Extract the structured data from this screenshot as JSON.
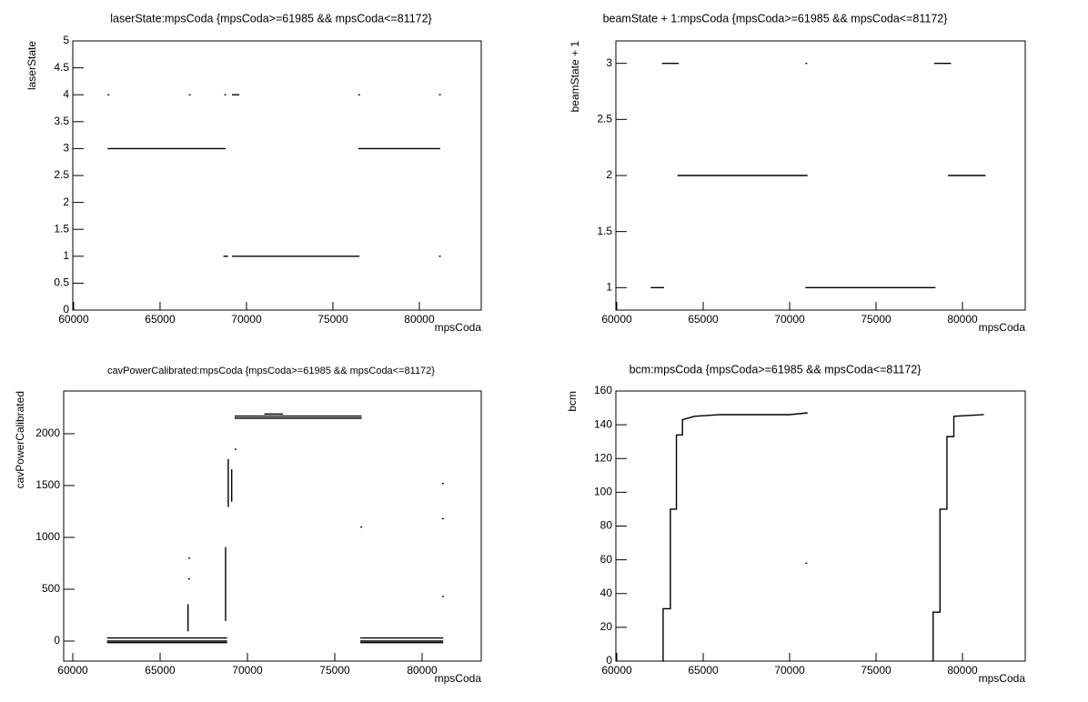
{
  "chart_data": [
    {
      "type": "line",
      "title": "laserState:mpsCoda {mpsCoda>=61985 && mpsCoda<=81172}",
      "xlabel": "mpsCoda",
      "ylabel": "laserState",
      "color": "#000000",
      "xlim": [
        59950,
        83580
      ],
      "xticks": [
        60000,
        65000,
        70000,
        75000,
        80000
      ],
      "ylim": [
        0,
        5
      ],
      "yticks": [
        0,
        0.5,
        1,
        1.5,
        2,
        2.5,
        3,
        3.5,
        4,
        4.5,
        5
      ],
      "x": [
        62000,
        68750,
        null,
        76500,
        81172,
        null,
        69200,
        76500,
        null,
        68700,
        68900,
        null,
        81172,
        null,
        62000,
        null,
        66700,
        null,
        68750,
        null,
        69200,
        69550,
        null,
        76500,
        null,
        81172
      ],
      "values": [
        3,
        3,
        null,
        3,
        3,
        null,
        1,
        1,
        null,
        1,
        1,
        null,
        1,
        null,
        4,
        null,
        4,
        null,
        4,
        null,
        4,
        4,
        null,
        4,
        null,
        4
      ]
    },
    {
      "type": "line",
      "title": "beamState + 1:mpsCoda {mpsCoda>=61985 && mpsCoda<=81172}",
      "xlabel": "mpsCoda",
      "ylabel": "beamState + 1",
      "color": "#000000",
      "xlim": [
        59947,
        83630
      ],
      "xticks": [
        60000,
        65000,
        70000,
        75000,
        80000
      ],
      "ylim": [
        0.8,
        3.2
      ],
      "yticks": [
        1,
        1.5,
        2,
        2.5,
        3
      ],
      "x": [
        62000,
        62700,
        null,
        62650,
        63550,
        null,
        63550,
        71000,
        null,
        70950,
        null,
        70950,
        78400,
        null,
        78400,
        79300,
        null,
        79200,
        81300
      ],
      "values": [
        1,
        1,
        null,
        3,
        3,
        null,
        2,
        2,
        null,
        3,
        null,
        1,
        1,
        null,
        3,
        3,
        null,
        2,
        2
      ]
    },
    {
      "type": "line",
      "title": "cavPowerCalibrated:mpsCoda {mpsCoda>=61985 && mpsCoda<=81172}",
      "xlabel": "mpsCoda",
      "ylabel": "cavPowerCalibrated",
      "color": "#000000",
      "xlim": [
        59480,
        83385
      ],
      "xticks": [
        60000,
        65000,
        70000,
        75000,
        80000
      ],
      "ylim": [
        -193,
        2412
      ],
      "yticks": [
        0,
        500,
        1000,
        1500,
        2000
      ],
      "x": [
        62000,
        68800,
        null,
        62000,
        68800,
        null,
        62000,
        68800,
        null,
        76500,
        81172,
        null,
        76500,
        81172,
        null,
        76500,
        81172,
        null,
        69300,
        76500,
        null,
        69300,
        76500,
        null,
        71000,
        72000,
        null,
        66600,
        66600,
        null,
        66650,
        null,
        66650,
        null,
        68750,
        68750,
        null,
        68900,
        68900,
        null,
        69100,
        69100,
        null,
        69300,
        null,
        76500,
        null,
        81172,
        null,
        81172,
        null,
        81172
      ],
      "values": [
        30,
        30,
        null,
        0,
        0,
        null,
        -15,
        -15,
        null,
        30,
        30,
        null,
        0,
        0,
        null,
        -15,
        -15,
        null,
        2170,
        2170,
        null,
        2150,
        2150,
        null,
        2190,
        2190,
        null,
        100,
        350,
        null,
        600,
        null,
        800,
        null,
        200,
        900,
        null,
        1300,
        1750,
        null,
        1350,
        1650,
        null,
        1850,
        null,
        1100,
        null,
        1520,
        null,
        1180,
        null,
        430
      ]
    },
    {
      "type": "line",
      "title": "bcm:mpsCoda {mpsCoda>=61985 && mpsCoda<=81172}",
      "xlabel": "mpsCoda",
      "ylabel": "bcm",
      "color": "#000000",
      "xlim": [
        59947,
        83630
      ],
      "xticks": [
        60000,
        65000,
        70000,
        75000,
        80000
      ],
      "ylim": [
        0,
        160
      ],
      "yticks": [
        0,
        20,
        40,
        60,
        80,
        100,
        120,
        140,
        160
      ],
      "x": [
        62680,
        62680,
        63100,
        63100,
        63450,
        63450,
        63800,
        63800,
        64500,
        66000,
        68000,
        70000,
        71000,
        null,
        70950,
        null,
        78300,
        78300,
        78700,
        78700,
        79100,
        79100,
        79500,
        79500,
        81200
      ],
      "values": [
        0,
        31,
        31,
        90,
        90,
        134,
        134,
        143,
        145,
        146,
        146,
        146,
        147,
        null,
        58,
        null,
        0,
        29,
        29,
        90,
        90,
        133,
        133,
        145,
        146
      ]
    }
  ]
}
